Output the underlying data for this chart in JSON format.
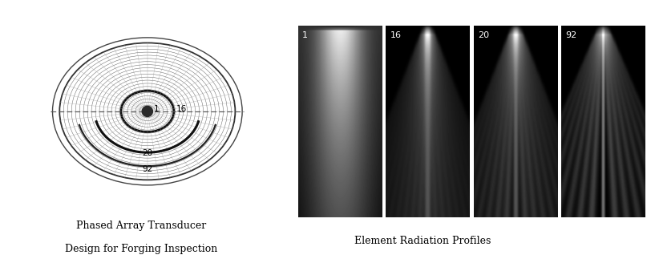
{
  "fig_width": 8.17,
  "fig_height": 3.23,
  "dpi": 100,
  "left_title_line1": "Phased Array Transducer",
  "left_title_line2": "Design for Forging Inspection",
  "right_title": "Element Radiation Profiles",
  "labels": [
    "1",
    "16",
    "20",
    "92"
  ],
  "background_color": "white",
  "text_color": "black"
}
